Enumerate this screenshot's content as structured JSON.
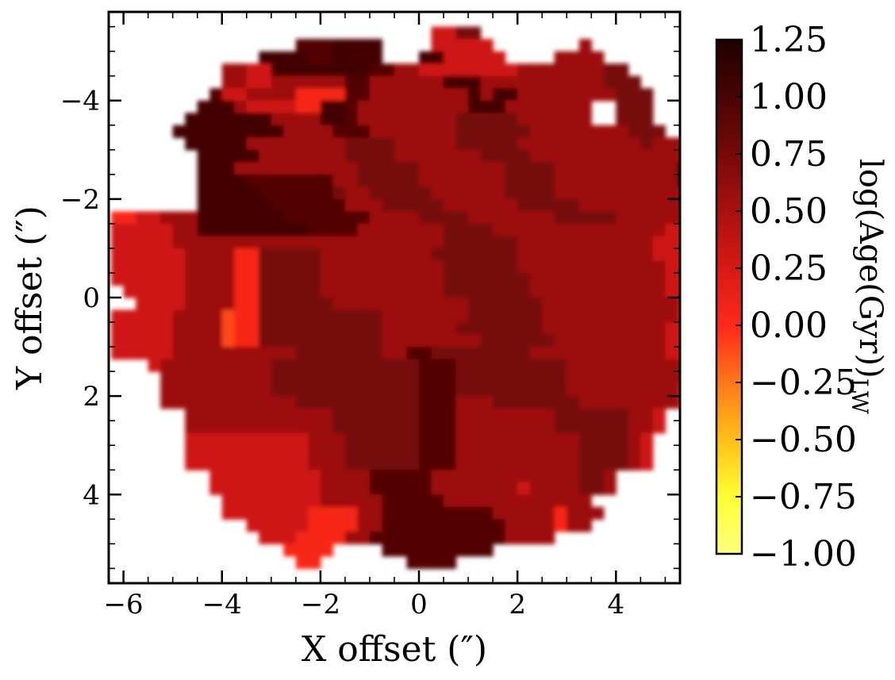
{
  "chart_data": {
    "type": "heatmap",
    "title": "",
    "xlabel": "X offset (″)",
    "ylabel": "Y offset (″)",
    "colorbar_label": "log(Age(Gyr))_LW",
    "colorbar_label_main": "log(Age(Gyr))",
    "colorbar_label_sub": "LW",
    "xlim": [
      -6.3,
      5.3
    ],
    "ylim": [
      5.8,
      -5.8
    ],
    "x_ticks": [
      "−6",
      "−4",
      "−2",
      "0",
      "2",
      "4"
    ],
    "y_ticks": [
      "−4",
      "−2",
      "0",
      "2",
      "4"
    ],
    "x_tick_values": [
      -6,
      -4,
      -2,
      0,
      2,
      4
    ],
    "y_tick_values": [
      -4,
      -2,
      0,
      2,
      4
    ],
    "color_range": [
      -1.0,
      1.25
    ],
    "colorbar_ticks": [
      "1.25",
      "1.00",
      "0.75",
      "0.50",
      "0.25",
      "0.00",
      "−0.25",
      "−0.50",
      "−0.75",
      "−1.00"
    ],
    "colorbar_tick_values": [
      1.25,
      1.0,
      0.75,
      0.5,
      0.25,
      0.0,
      -0.25,
      -0.5,
      -0.75,
      -1.0
    ],
    "colormap": [
      "#ffff80",
      "#ffff33",
      "#ffc01a",
      "#ff7a1a",
      "#ff2a1a",
      "#d91a16",
      "#a8100f",
      "#760909",
      "#4a0404",
      "#200000"
    ],
    "cell_size": 0.5,
    "x_start": -6.25,
    "y_start": -5.75,
    "grid": [
      "                          ........                  ",
      "                         .5577.                     ",
      "               8889999.  .55555.     .6.            ",
      "            9999889999.  9955555.  .6666.           ",
      "         665599999999886655555555666666677.        ",
      "         6655666666886666669996666666666777.       ",
      "        855666644448866666666969966666666777.      ",
      "       9996555544998666666666999666666622777.      ",
      "     .99999996666998666666667777766666622777.      ",
      "     9999999996666888666666677777766666666777.     ",
      "      999996666666677776666677777666666666676666.  ",
      "       999996666666777766666667777666666666666667. ",
      "       999666666666677777666666677776666666666999. ",
      "       99998888888667777766666667777666666666699999",
      "       9999988888876677777666666777766666666666999 ",
      "       9999998888886667777766666677777666666666666 ",
      "44556669999999888888866667777666666677777666666666.",
      "5555566999999999888866666667777666666666666665555. ",
      "55555666666666666666666666677777766666666666555555.",
      "555555666644777776666666667777777666666666665555555",
      "555555666644777776666666666777777666666666666555555",
      "5555556666447777766666666667777777666666666665555555",
      " 5555566664477777666666666677777776666666666655555 ",
      " .5555666644777777666666666667777776666666666655555",
      "555556666344777777777766666667777776666666666655555",
      "555556666344777777777766666677777776666666666555555",
      "5555566663447777777777666666667777776666666665555  ",
      "5555566666666667777777668877777777666666666665555  ",
      "   5666666666777777777777888777777777666666666665  ",
      "    666666666777777777777888777777777666666666665  ",
      "    6666666667777777777778887777777776666666665    ",
      "    6666666666677777777778886667777777666666665    ",
      "      666666666666777777788866666666777777665      ",
      "      666666666666777777788866666666777777665      ",
      "      55555555556667777778886666666666777765       ",
      "      55555555556667777778886666666666777765       ",
      "      55555555556667777778886666666666777765       ",
      "        555555555666688888666666666666776         ",
      "        555555555666688888666666656666776         ",
      "         555555556666688888666666666666          ",
      "         5555555444466888888888666664666          ",
      "           5555544446688888888886666466           ",
      "            555444466888888888886666              ",
      "              4444    888888888                   ",
      "               44       8888                      "
    ],
    "value_palette": {
      "3": -0.1,
      "4": 0.05,
      "5": 0.3,
      "6": 0.55,
      "7": 0.75,
      "8": 0.95,
      "9": 1.05
    }
  }
}
